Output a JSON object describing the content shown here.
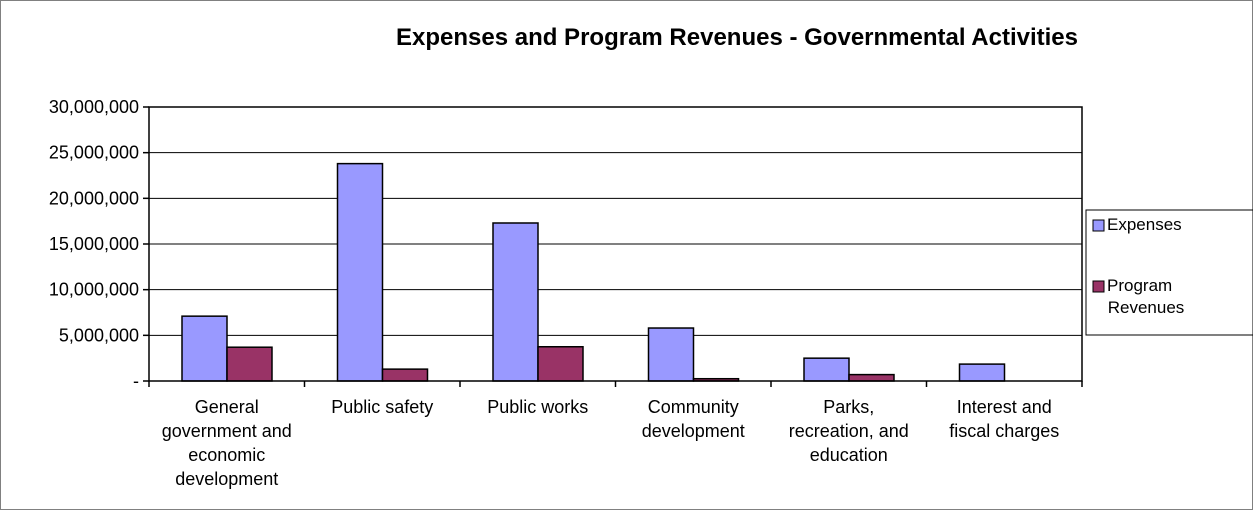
{
  "chart_data": {
    "type": "bar",
    "title": "Expenses and Program Revenues - Governmental Activities",
    "categories": [
      "General government and economic development",
      "Public safety",
      "Public works",
      "Community development",
      "Parks, recreation, and education",
      "Interest and fiscal charges"
    ],
    "category_lines": [
      [
        "General",
        "government and",
        "economic",
        "development"
      ],
      [
        "Public safety"
      ],
      [
        "Public works"
      ],
      [
        "Community",
        "development"
      ],
      [
        "Parks,",
        "recreation, and",
        "education"
      ],
      [
        "Interest and",
        "fiscal charges"
      ]
    ],
    "series": [
      {
        "name": "Expenses",
        "color": "#9999ff",
        "values": [
          7100000,
          23800000,
          17300000,
          5800000,
          2500000,
          1850000
        ]
      },
      {
        "name": "Program Revenues",
        "color": "#993366",
        "values": [
          3700000,
          1300000,
          3750000,
          250000,
          700000,
          0
        ]
      }
    ],
    "legend_lines": [
      [
        "Expenses"
      ],
      [
        "Program",
        "Revenues"
      ]
    ],
    "ylim": [
      0,
      30000000
    ],
    "yticks": [
      0,
      5000000,
      10000000,
      15000000,
      20000000,
      25000000,
      30000000
    ],
    "ytick_labels": [
      "-",
      "5,000,000",
      "10,000,000",
      "15,000,000",
      "20,000,000",
      "25,000,000",
      "30,000,000"
    ],
    "grid": true,
    "legend_position": "right"
  }
}
